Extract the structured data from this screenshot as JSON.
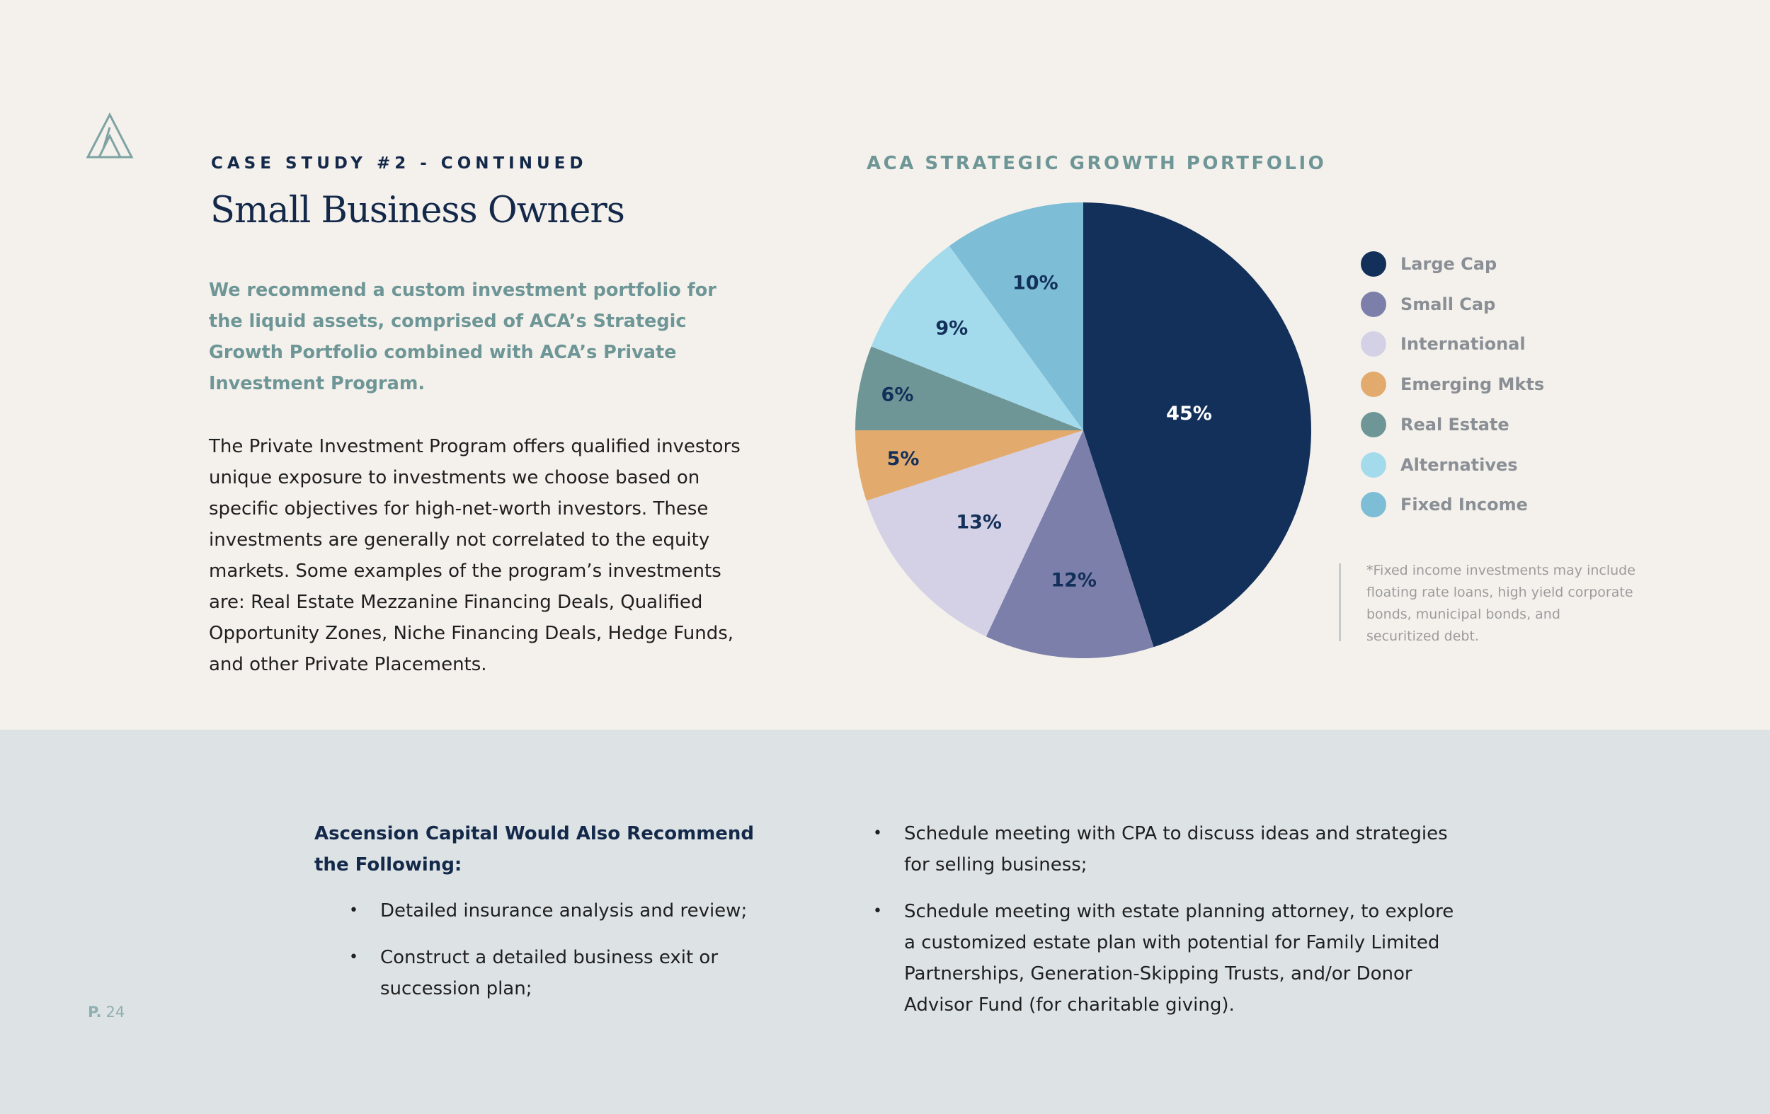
{
  "header": {
    "eyebrow": "CASE STUDY #2 - CONTINUED",
    "title": "Small Business Owners"
  },
  "lead": "We recommend a custom investment portfolio for the liquid assets, comprised of ACA’s Strategic Growth Portfolio combined with ACA’s Private Investment Program.",
  "body": "The Private Investment Program offers qualified investors unique exposure to investments we choose based on specific objectives for high-net-worth investors. These investments are generally not correlated to the equity markets. Some examples of the program’s investments are: Real Estate Mezzanine Financing Deals, Qualified Opportunity Zones, Niche Financing Deals, Hedge Funds, and other Private Placements.",
  "chart_data": {
    "type": "pie",
    "title": "ACA STRATEGIC GROWTH PORTFOLIO",
    "categories": [
      "Large Cap",
      "Small Cap",
      "International",
      "Emerging Mkts",
      "Real Estate",
      "Alternatives",
      "Fixed Income"
    ],
    "values": [
      45,
      12,
      13,
      5,
      6,
      9,
      10
    ],
    "value_labels": [
      "45%",
      "12%",
      "13%",
      "5%",
      "6%",
      "9%",
      "10%"
    ],
    "colors": [
      "#13305a",
      "#7b7faa",
      "#d4d1e6",
      "#e3aa6e",
      "#6f9696",
      "#a4dbec",
      "#7dbdd6"
    ],
    "label_colors": [
      "#ffffff",
      "#13305a",
      "#13305a",
      "#13305a",
      "#13305a",
      "#13305a",
      "#13305a"
    ],
    "legend_position": "right"
  },
  "footnote": "*Fixed income investments may include floating rate loans, high yield corporate bonds, municipal bonds, and securitized debt.",
  "recommend": {
    "heading": "Ascension Capital Would Also Recommend the Following:",
    "left_items": [
      "Detailed insurance analysis and review;",
      "Construct a detailed business exit or succession plan;"
    ],
    "right_items": [
      "Schedule meeting with CPA to discuss ideas and strategies for selling business;",
      "Schedule meeting with estate planning attorney, to explore a customized estate plan with potential for Family Limited Partnerships, Generation-Skipping Trusts, and/or Donor Advisor Fund (for charitable giving)."
    ],
    "bullet": "•"
  },
  "footer": {
    "page_prefix": "P.",
    "page_number": "24"
  }
}
